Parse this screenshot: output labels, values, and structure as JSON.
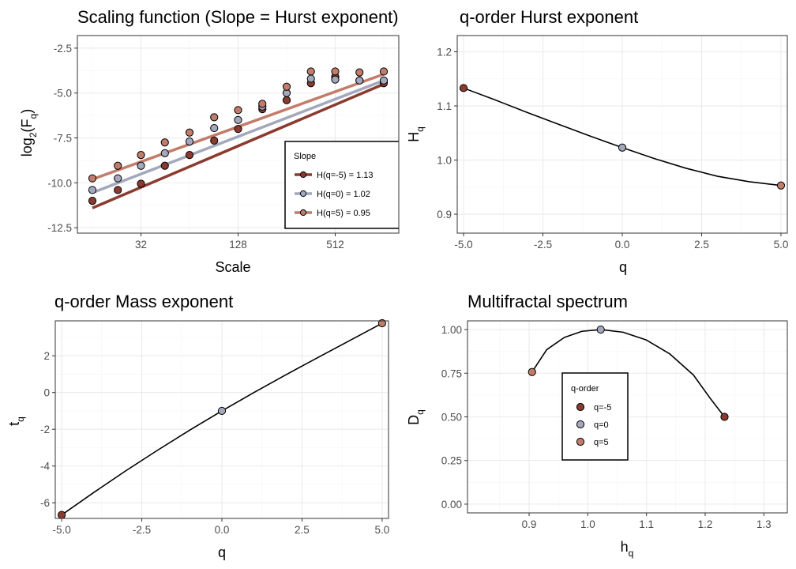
{
  "chart_data": [
    {
      "id": "scaling",
      "type": "scatter",
      "title": "Scaling function (Slope = Hurst exponent)",
      "xlabel": "Scale",
      "ylabel_main": "log",
      "ylabel_sub1": "2",
      "ylabel_paren_open": "(F",
      "ylabel_sub2": "q",
      "ylabel_paren_close": ")",
      "x_scale": "log2",
      "xlim": [
        16,
        1024
      ],
      "ylim": [
        -12.8,
        -1.8
      ],
      "x_ticks": [
        32,
        128,
        512
      ],
      "x_tick_labels": [
        "32",
        "128",
        "512"
      ],
      "y_ticks": [
        -12.5,
        -10,
        -7.5,
        -5,
        -2.5
      ],
      "y_tick_labels": [
        "-12.5",
        "-10.0",
        "-7.5",
        "-5.0",
        "-2.5"
      ],
      "grid": true,
      "legend": {
        "title": "Slope",
        "placement": "bottom-right",
        "entries": [
          "H(q=-5) = 1.13",
          "H(q=0) = 1.02",
          "H(q=5) = 0.95"
        ]
      },
      "series": [
        {
          "name": "H(q=-5) = 1.13",
          "color": "#8b3a2f",
          "x": [
            16,
            23,
            32,
            45,
            64,
            91,
            128,
            181,
            256,
            362,
            512,
            724,
            1024
          ],
          "y": [
            -11.0,
            -10.4,
            -10.05,
            -9.05,
            -8.45,
            -7.65,
            -7.0,
            -5.9,
            -5.4,
            -4.45,
            -4.1,
            -4.3,
            -4.45
          ],
          "fit": [
            [
              16,
              -11.4
            ],
            [
              1024,
              -4.5
            ]
          ]
        },
        {
          "name": "H(q=0) = 1.02",
          "color": "#a3a8bc",
          "x": [
            16,
            23,
            32,
            45,
            64,
            91,
            128,
            181,
            256,
            362,
            512,
            724,
            1024
          ],
          "y": [
            -10.4,
            -9.75,
            -9.05,
            -8.35,
            -7.7,
            -6.95,
            -6.5,
            -5.75,
            -5.0,
            -4.2,
            -4.25,
            -4.3,
            -4.3
          ],
          "fit": [
            [
              16,
              -10.55
            ],
            [
              1024,
              -4.3
            ]
          ]
        },
        {
          "name": "H(q=5) = 0.95",
          "color": "#c27c6a",
          "x": [
            16,
            23,
            32,
            45,
            64,
            91,
            128,
            181,
            256,
            362,
            512,
            724,
            1024
          ],
          "y": [
            -9.75,
            -9.05,
            -8.45,
            -7.75,
            -7.2,
            -6.35,
            -5.95,
            -5.6,
            -4.65,
            -3.8,
            -3.8,
            -3.85,
            -3.8
          ],
          "fit": [
            [
              16,
              -9.8
            ],
            [
              1024,
              -3.95
            ]
          ]
        }
      ]
    },
    {
      "id": "hurst",
      "type": "line",
      "title": "q-order Hurst exponent",
      "xlabel": "q",
      "ylabel_main": "H",
      "ylabel_sub": "q",
      "xlim": [
        -5.2,
        5.2
      ],
      "ylim": [
        0.865,
        1.23
      ],
      "x_ticks": [
        -5,
        -2.5,
        0,
        2.5,
        5
      ],
      "x_tick_labels": [
        "-5.0",
        "-2.5",
        "0.0",
        "2.5",
        "5.0"
      ],
      "y_ticks": [
        0.9,
        1.0,
        1.1,
        1.2
      ],
      "y_tick_labels": [
        "0.9",
        "1.0",
        "1.1",
        "1.2"
      ],
      "grid": true,
      "curve": {
        "q": [
          -5,
          -4,
          -3,
          -2,
          -1,
          0,
          1,
          2,
          3,
          4,
          5
        ],
        "H": [
          1.133,
          1.111,
          1.088,
          1.066,
          1.044,
          1.023,
          1.003,
          0.985,
          0.97,
          0.96,
          0.953
        ]
      },
      "points": [
        {
          "q": -5,
          "value": 1.133,
          "color": "#8b3a2f"
        },
        {
          "q": 0,
          "value": 1.023,
          "color": "#a3a8bc"
        },
        {
          "q": 5,
          "value": 0.953,
          "color": "#c27c6a"
        }
      ]
    },
    {
      "id": "mass",
      "type": "line",
      "title": "q-order Mass exponent",
      "xlabel": "q",
      "ylabel_main": "t",
      "ylabel_sub": "q",
      "xlim": [
        -5.2,
        5.2
      ],
      "ylim": [
        -6.85,
        3.9
      ],
      "x_ticks": [
        -5,
        -2.5,
        0,
        2.5,
        5
      ],
      "x_tick_labels": [
        "-5.0",
        "-2.5",
        "0.0",
        "2.5",
        "5.0"
      ],
      "y_ticks": [
        -6,
        -4,
        -2,
        0,
        2
      ],
      "y_tick_labels": [
        "-6",
        "-4",
        "-2",
        "0",
        "2"
      ],
      "grid": true,
      "curve": {
        "q": [
          -5,
          -4,
          -3,
          -2,
          -1,
          0,
          1,
          2,
          3,
          4,
          5
        ],
        "t": [
          -6.66,
          -5.44,
          -4.26,
          -3.13,
          -2.04,
          -1.0,
          0.0,
          0.97,
          1.91,
          2.84,
          3.77
        ]
      },
      "points": [
        {
          "q": -5,
          "value": -6.66,
          "color": "#8b3a2f"
        },
        {
          "q": 0,
          "value": -1.0,
          "color": "#a3a8bc"
        },
        {
          "q": 5,
          "value": 3.77,
          "color": "#c27c6a"
        }
      ]
    },
    {
      "id": "spectrum",
      "type": "line",
      "title": "Multifractal spectrum",
      "xlabel_main": "h",
      "xlabel_sub": "q",
      "ylabel_main": "D",
      "ylabel_sub": "q",
      "xlim": [
        0.795,
        1.34
      ],
      "ylim": [
        -0.05,
        1.05
      ],
      "x_ticks": [
        0.9,
        1.0,
        1.1,
        1.2,
        1.3
      ],
      "x_tick_labels": [
        "0.9",
        "1.0",
        "1.1",
        "1.2",
        "1.3"
      ],
      "y_ticks": [
        0.0,
        0.25,
        0.5,
        0.75,
        1.0
      ],
      "y_tick_labels": [
        "0.00",
        "0.25",
        "0.50",
        "0.75",
        "1.00"
      ],
      "grid": true,
      "legend": {
        "title": "q-order",
        "placement": "center",
        "entries": [
          "q=-5",
          "q=0",
          "q=5"
        ]
      },
      "curve": {
        "h": [
          0.905,
          0.93,
          0.96,
          0.99,
          1.022,
          1.06,
          1.1,
          1.14,
          1.18,
          1.21,
          1.233
        ],
        "D": [
          0.757,
          0.885,
          0.955,
          0.99,
          1.0,
          0.985,
          0.94,
          0.86,
          0.74,
          0.6,
          0.5
        ]
      },
      "points": [
        {
          "h": 1.233,
          "value": 0.5,
          "color": "#8b3a2f"
        },
        {
          "h": 1.022,
          "value": 1.0,
          "color": "#a3a8bc"
        },
        {
          "h": 0.905,
          "value": 0.757,
          "color": "#c27c6a"
        }
      ]
    }
  ]
}
